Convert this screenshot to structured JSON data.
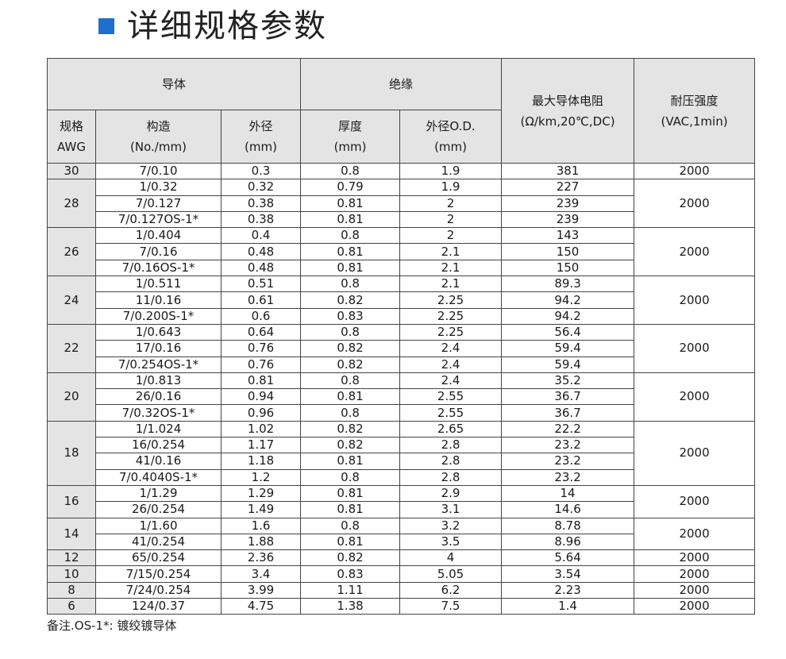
{
  "title": "详细规格参数",
  "colors": {
    "accent": "#1e6fd0",
    "header_bg": "#e4e4e4"
  },
  "header": {
    "conductor": "导体",
    "insulation": "绝缘",
    "max_resistance": "最大导体电阻",
    "max_resistance_unit": "(Ω/km,20℃,DC)",
    "withstand": "耐压强度",
    "withstand_unit": "(VAC,1min)",
    "awg_1": "规格",
    "awg_2": "AWG",
    "structure": "构造",
    "structure_unit": "(No./mm)",
    "od": "外径",
    "od_unit": "(mm)",
    "thickness": "厚度",
    "thickness_unit": "(mm)",
    "ins_od": "外径O.D.",
    "ins_od_unit": "(mm)"
  },
  "groups": [
    {
      "awg": "30",
      "voltage": "2000",
      "rows": [
        [
          "7/0.10",
          "0.3",
          "0.8",
          "1.9",
          "381"
        ]
      ]
    },
    {
      "awg": "28",
      "voltage": "2000",
      "rows": [
        [
          "1/0.32",
          "0.32",
          "0.79",
          "1.9",
          "227"
        ],
        [
          "7/0.127",
          "0.38",
          "0.81",
          "2",
          "239"
        ],
        [
          "7/0.127OS-1*",
          "0.38",
          "0.81",
          "2",
          "239"
        ]
      ]
    },
    {
      "awg": "26",
      "voltage": "2000",
      "rows": [
        [
          "1/0.404",
          "0.4",
          "0.8",
          "2",
          "143"
        ],
        [
          "7/0.16",
          "0.48",
          "0.81",
          "2.1",
          "150"
        ],
        [
          "7/0.16OS-1*",
          "0.48",
          "0.81",
          "2.1",
          "150"
        ]
      ]
    },
    {
      "awg": "24",
      "voltage": "2000",
      "rows": [
        [
          "1/0.511",
          "0.51",
          "0.8",
          "2.1",
          "89.3"
        ],
        [
          "11/0.16",
          "0.61",
          "0.82",
          "2.25",
          "94.2"
        ],
        [
          "7/0.200S-1*",
          "0.6",
          "0.83",
          "2.25",
          "94.2"
        ]
      ]
    },
    {
      "awg": "22",
      "voltage": "2000",
      "rows": [
        [
          "1/0.643",
          "0.64",
          "0.8",
          "2.25",
          "56.4"
        ],
        [
          "17/0.16",
          "0.76",
          "0.82",
          "2.4",
          "59.4"
        ],
        [
          "7/0.254OS-1*",
          "0.76",
          "0.82",
          "2.4",
          "59.4"
        ]
      ]
    },
    {
      "awg": "20",
      "voltage": "2000",
      "rows": [
        [
          "1/0.813",
          "0.81",
          "0.8",
          "2.4",
          "35.2"
        ],
        [
          "26/0.16",
          "0.94",
          "0.81",
          "2.55",
          "36.7"
        ],
        [
          "7/0.32OS-1*",
          "0.96",
          "0.8",
          "2.55",
          "36.7"
        ]
      ]
    },
    {
      "awg": "18",
      "voltage": "2000",
      "rows": [
        [
          "1/1.024",
          "1.02",
          "0.82",
          "2.65",
          "22.2"
        ],
        [
          "16/0.254",
          "1.17",
          "0.82",
          "2.8",
          "23.2"
        ],
        [
          "41/0.16",
          "1.18",
          "0.81",
          "2.8",
          "23.2"
        ],
        [
          "7/0.4040S-1*",
          "1.2",
          "0.8",
          "2.8",
          "23.2"
        ]
      ]
    },
    {
      "awg": "16",
      "voltage": "2000",
      "rows": [
        [
          "1/1.29",
          "1.29",
          "0.81",
          "2.9",
          "14"
        ],
        [
          "26/0.254",
          "1.49",
          "0.81",
          "3.1",
          "14.6"
        ]
      ]
    },
    {
      "awg": "14",
      "voltage": "2000",
      "rows": [
        [
          "1/1.60",
          "1.6",
          "0.8",
          "3.2",
          "8.78"
        ],
        [
          "41/0.254",
          "1.88",
          "0.81",
          "3.5",
          "8.96"
        ]
      ]
    },
    {
      "awg": "12",
      "voltage": "2000",
      "rows": [
        [
          "65/0.254",
          "2.36",
          "0.82",
          "4",
          "5.64"
        ]
      ]
    },
    {
      "awg": "10",
      "voltage": "2000",
      "rows": [
        [
          "7/15/0.254",
          "3.4",
          "0.83",
          "5.05",
          "3.54"
        ]
      ]
    },
    {
      "awg": "8",
      "voltage": "2000",
      "rows": [
        [
          "7/24/0.254",
          "3.99",
          "1.11",
          "6.2",
          "2.23"
        ]
      ]
    },
    {
      "awg": "6",
      "voltage": "2000",
      "rows": [
        [
          "124/0.37",
          "4.75",
          "1.38",
          "7.5",
          "1.4"
        ]
      ]
    }
  ],
  "note": "备注.OS-1*: 镀绞镀导体"
}
